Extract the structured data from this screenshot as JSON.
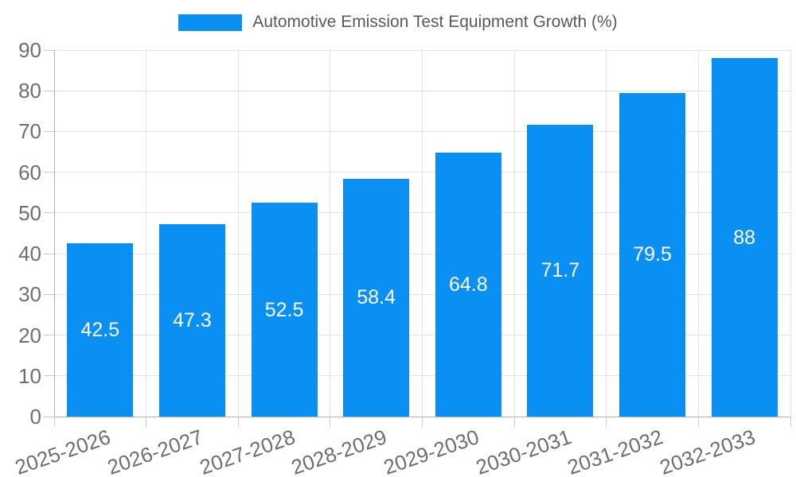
{
  "legend": {
    "label": "Automotive Emission Test Equipment Growth (%)"
  },
  "colors": {
    "bar": "#0a90f2",
    "bar_label_text": "#ffffff",
    "axis_text": "#6e6e6e",
    "legend_text": "#595959",
    "gridline": "#e3e3e3",
    "axis_line": "#b0b0b0"
  },
  "chart_data": {
    "type": "bar",
    "title": "Automotive Emission Test Equipment Growth (%)",
    "categories": [
      "2025-2026",
      "2026-2027",
      "2027-2028",
      "2028-2029",
      "2029-2030",
      "2030-2031",
      "2031-2032",
      "2032-2033"
    ],
    "values": [
      42.5,
      47.3,
      52.5,
      58.4,
      64.8,
      71.7,
      79.5,
      88
    ],
    "value_labels": [
      "42.5",
      "47.3",
      "52.5",
      "58.4",
      "64.8",
      "71.7",
      "79.5",
      "88"
    ],
    "xlabel": "",
    "ylabel": "",
    "ylim": [
      0,
      90
    ],
    "ytick_step": 10,
    "yticks": [
      0,
      10,
      20,
      30,
      40,
      50,
      60,
      70,
      80,
      90
    ],
    "grid": true,
    "legend_position": "top-center",
    "bar_color": "#0a90f2",
    "value_label_position": "inside-center"
  }
}
